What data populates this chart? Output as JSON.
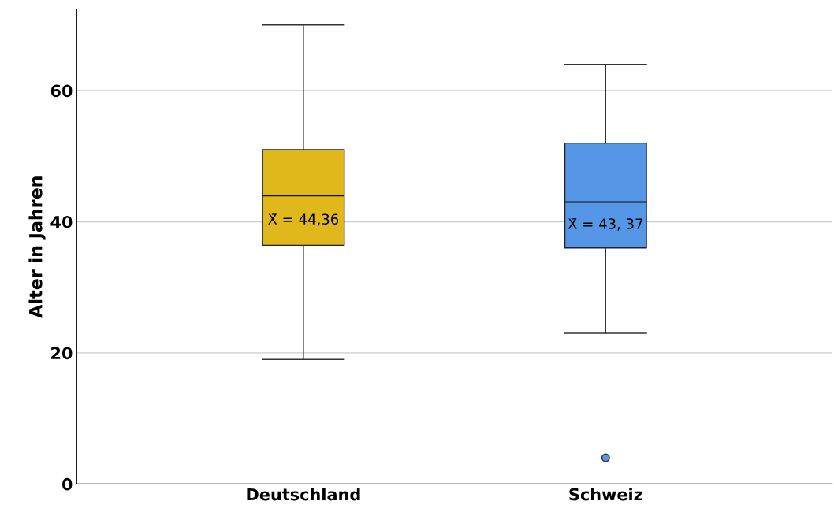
{
  "chart_data": {
    "type": "box",
    "ylabel": "Alter in Jahren",
    "categories": [
      "Deutschland",
      "Schweiz"
    ],
    "boxes": [
      {
        "low": 19,
        "q1": 36.4,
        "median": 44,
        "q3": 51,
        "high": 70
      },
      {
        "low": 23,
        "q1": 36,
        "median": 43,
        "q3": 52,
        "high": 64,
        "outliers": [
          4
        ]
      }
    ],
    "colors": [
      "#e0b81c",
      "#5596e6"
    ],
    "ylim": [
      0,
      72.4
    ],
    "yticks": [
      0,
      20,
      40,
      60
    ],
    "grid": "y",
    "annotations": [
      "X̄ = 44,36",
      "X̄ = 43, 37"
    ]
  }
}
